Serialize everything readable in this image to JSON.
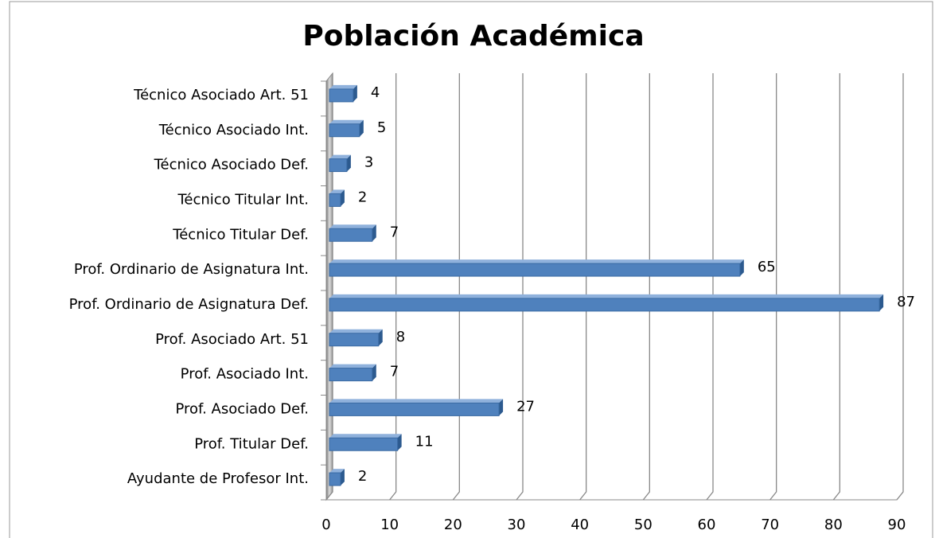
{
  "chart_data": {
    "type": "bar",
    "orientation": "horizontal",
    "title": "Población Académica",
    "categories": [
      "Técnico Asociado Art. 51",
      "Técnico Asociado Int.",
      "Técnico Asociado Def.",
      "Técnico Titular Int.",
      "Técnico Titular Def.",
      "Prof. Ordinario de Asignatura Int.",
      "Prof. Ordinario de Asignatura Def.",
      "Prof. Asociado Art. 51",
      "Prof. Asociado Int.",
      "Prof. Asociado Def.",
      "Prof. Titular Def.",
      "Ayudante de Profesor Int."
    ],
    "values": [
      4,
      5,
      3,
      2,
      7,
      65,
      87,
      8,
      7,
      27,
      11,
      2
    ],
    "color": "#4f81bd",
    "xlim": [
      0,
      90
    ],
    "xticks": [
      0,
      10,
      20,
      30,
      40,
      50,
      60,
      70,
      80,
      90
    ],
    "grid": true
  }
}
